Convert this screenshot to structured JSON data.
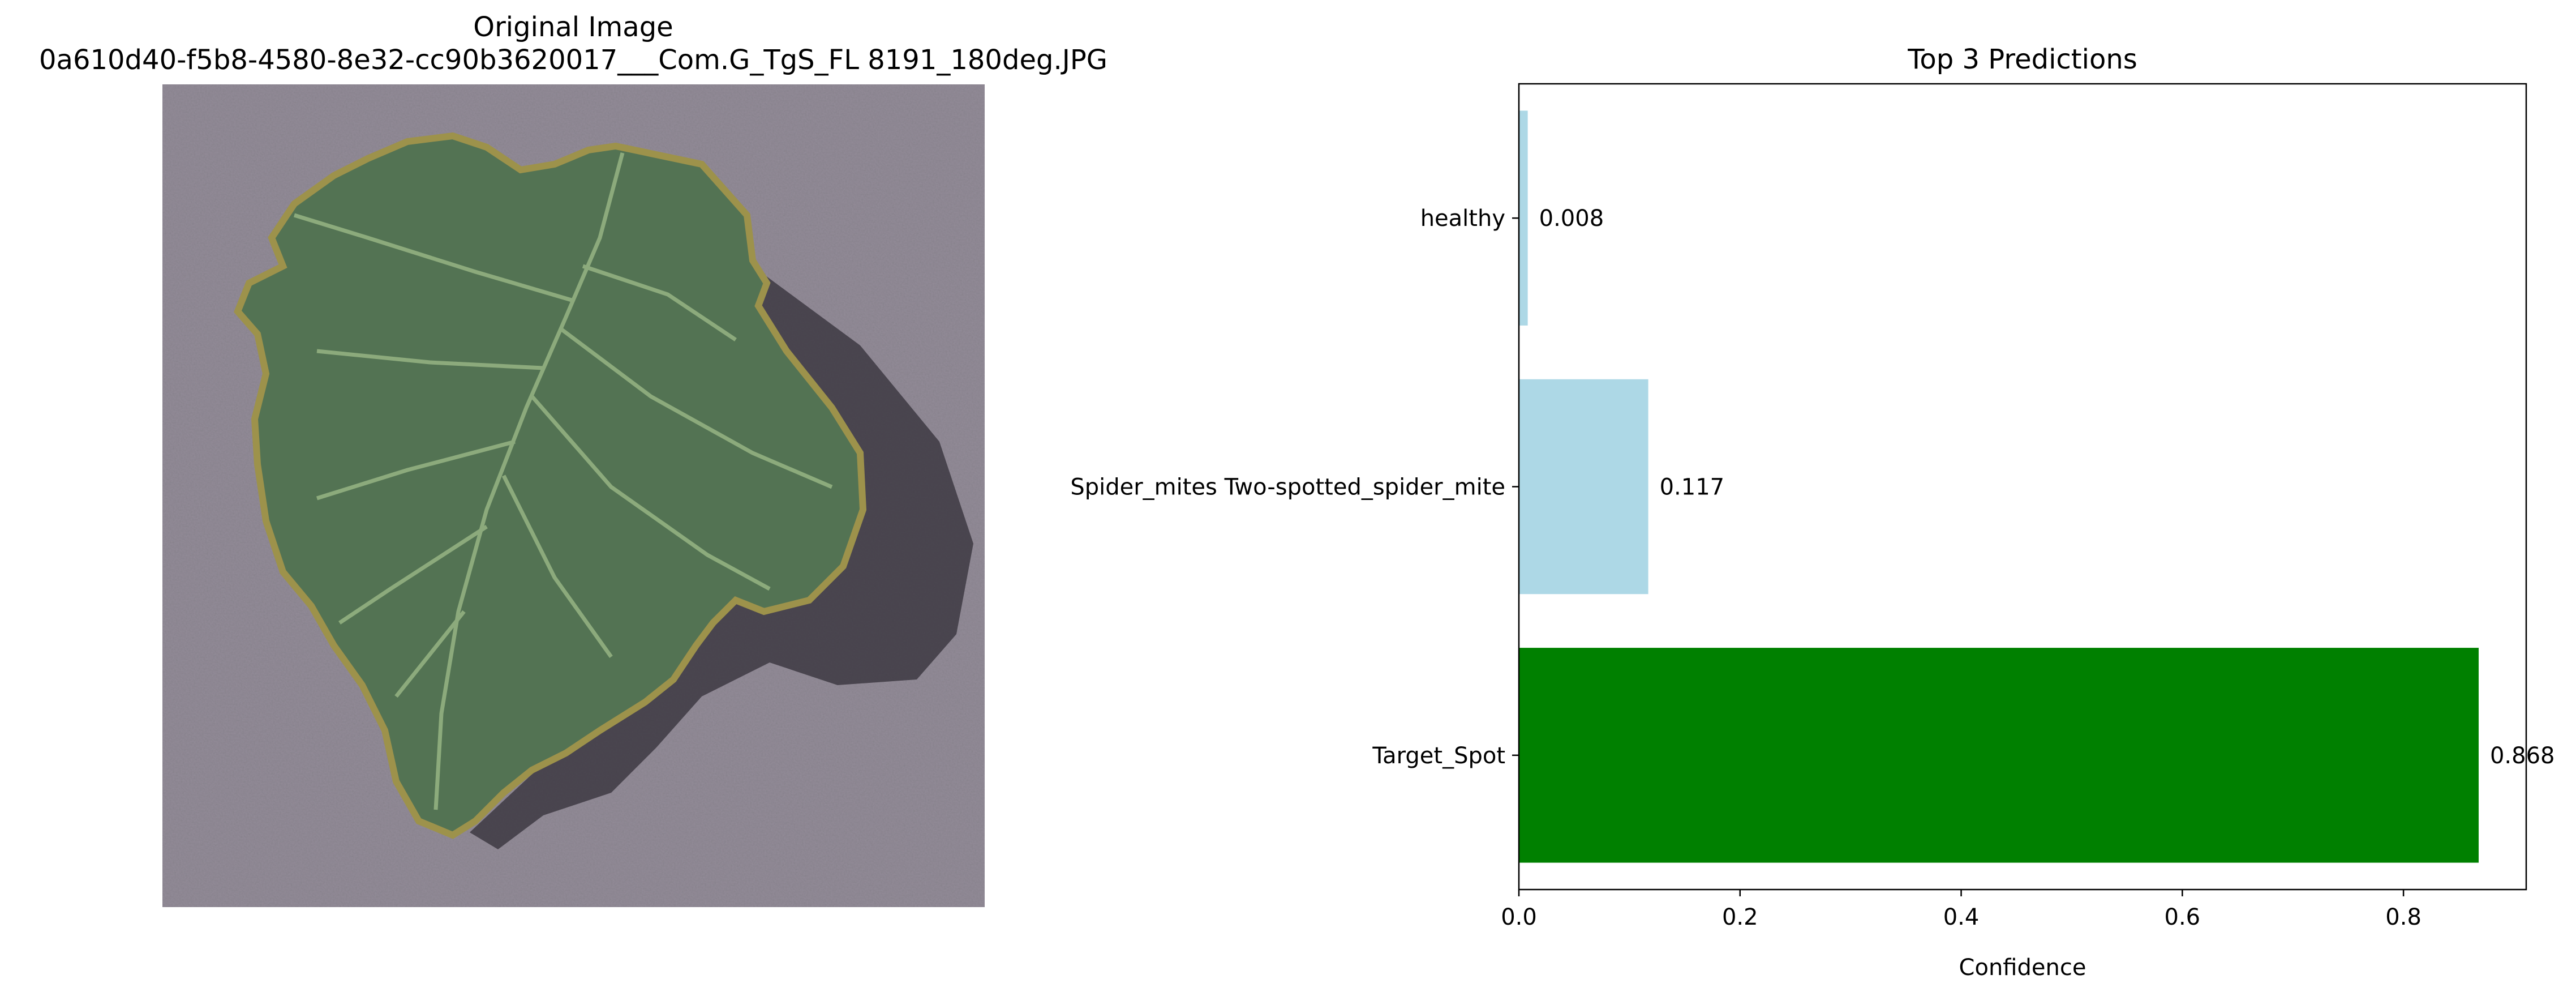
{
  "left_panel": {
    "title_line1": "Original Image",
    "title_line2": "0a610d40-f5b8-4580-8e32-cc90b3620017___Com.G_TgS_FL 8191_180deg.JPG",
    "photo_subject": "tomato leaf photograph on gray background"
  },
  "chart_data": {
    "type": "bar",
    "orientation": "horizontal",
    "title": "Top 3 Predictions",
    "xlabel": "Confidence",
    "ylabel": "",
    "xlim": [
      0,
      0.911
    ],
    "xticks": [
      "0.0",
      "0.2",
      "0.4",
      "0.6",
      "0.8"
    ],
    "xtick_values": [
      0,
      0.2,
      0.4,
      0.6,
      0.8
    ],
    "categories": [
      "Target_Spot",
      "Spider_mites Two-spotted_spider_mite",
      "healthy"
    ],
    "values": [
      0.868,
      0.117,
      0.008
    ],
    "value_labels": [
      "0.868",
      "0.117",
      "0.008"
    ],
    "colors": [
      "#008000",
      "#add8e6",
      "#add8e6"
    ],
    "grid": false,
    "legend": "none"
  }
}
